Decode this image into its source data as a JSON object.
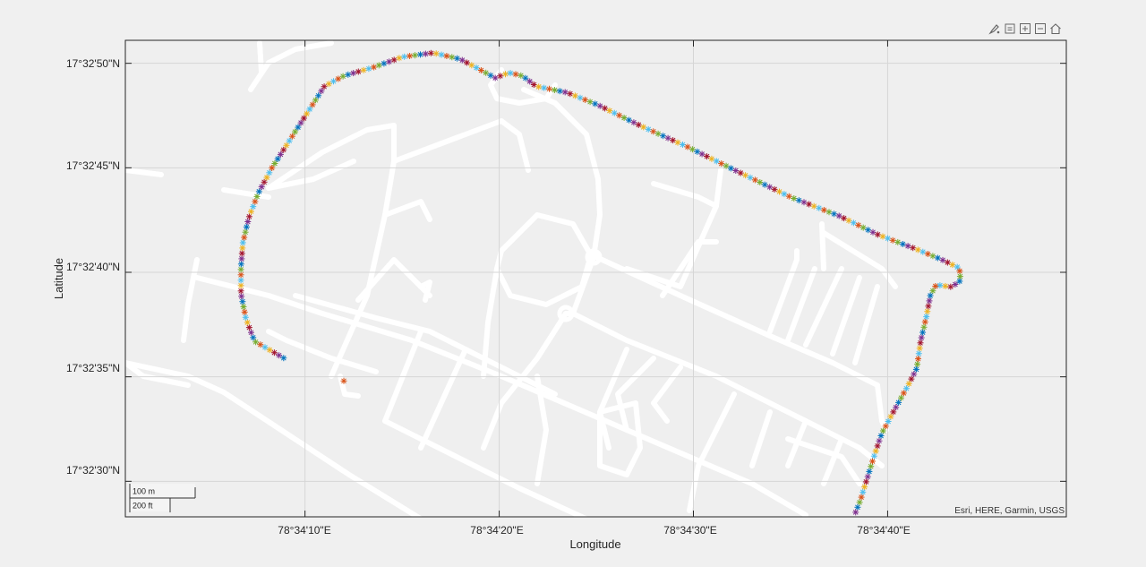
{
  "toolbar": {
    "items": [
      {
        "icon": "brush-icon"
      },
      {
        "icon": "restore-view-icon"
      },
      {
        "icon": "zoom-in-icon"
      },
      {
        "icon": "zoom-out-icon"
      },
      {
        "icon": "home-icon"
      }
    ]
  },
  "axes": {
    "xlabel": "Longitude",
    "ylabel": "Latitude",
    "xticks": [
      "78°34'10\"E",
      "78°34'20\"E",
      "78°34'30\"E",
      "78°34'40\"E"
    ],
    "yticks": [
      "17°32'50\"N",
      "17°32'45\"N",
      "17°32'40\"N",
      "17°32'35\"N",
      "17°32'30\"N"
    ],
    "attribution": "Esri, HERE, Garmin, USGS",
    "grid": true
  },
  "scalebar": {
    "metric": "100 m",
    "imperial": "200 ft"
  },
  "colors": {
    "series": [
      "#0072BD",
      "#D95319",
      "#EDB120",
      "#7E2F8E",
      "#77AC30",
      "#4DBEEE",
      "#A2142F"
    ],
    "map_background": "#efefef",
    "roads": "#ffffff"
  },
  "chart_data": {
    "type": "scatter",
    "marker": "asterisk",
    "x_unit": "seconds east of 78°34'00\"E",
    "y_unit": "seconds north of 17°32'00\"N",
    "xlim": [
      0.75,
      49.2
    ],
    "ylim": [
      28.3,
      51.1
    ],
    "track": [
      [
        8.9,
        35.9
      ],
      [
        7.4,
        36.7
      ],
      [
        6.95,
        37.8
      ],
      [
        6.7,
        39.0
      ],
      [
        6.7,
        40.2
      ],
      [
        6.8,
        41.4
      ],
      [
        7.1,
        42.6
      ],
      [
        7.6,
        43.8
      ],
      [
        8.3,
        45.0
      ],
      [
        9.2,
        46.3
      ],
      [
        10.1,
        47.6
      ],
      [
        11.0,
        48.9
      ],
      [
        12.0,
        49.4
      ],
      [
        13.5,
        49.8
      ],
      [
        15.0,
        50.3
      ],
      [
        16.6,
        50.5
      ],
      [
        18.0,
        50.2
      ],
      [
        19.2,
        49.6
      ],
      [
        19.8,
        49.3
      ],
      [
        20.5,
        49.55
      ],
      [
        21.2,
        49.4
      ],
      [
        21.9,
        48.9
      ],
      [
        23.5,
        48.6
      ],
      [
        25.1,
        48.0
      ],
      [
        27.3,
        47.0
      ],
      [
        29.7,
        46.0
      ],
      [
        32.1,
        44.9
      ],
      [
        35.0,
        43.6
      ],
      [
        37.5,
        42.7
      ],
      [
        39.5,
        41.8
      ],
      [
        41.5,
        41.1
      ],
      [
        42.8,
        40.6
      ],
      [
        43.7,
        40.2
      ],
      [
        43.75,
        39.6
      ],
      [
        43.3,
        39.3
      ],
      [
        42.5,
        39.4
      ],
      [
        42.2,
        38.9
      ],
      [
        42.0,
        37.9
      ],
      [
        41.7,
        36.7
      ],
      [
        41.5,
        35.4
      ],
      [
        41.0,
        34.5
      ],
      [
        40.4,
        33.5
      ],
      [
        39.7,
        32.3
      ],
      [
        39.3,
        31.2
      ],
      [
        38.9,
        30.0
      ],
      [
        38.6,
        29.1
      ],
      [
        38.3,
        28.4
      ]
    ],
    "outlier": [
      12.0,
      34.8
    ]
  }
}
